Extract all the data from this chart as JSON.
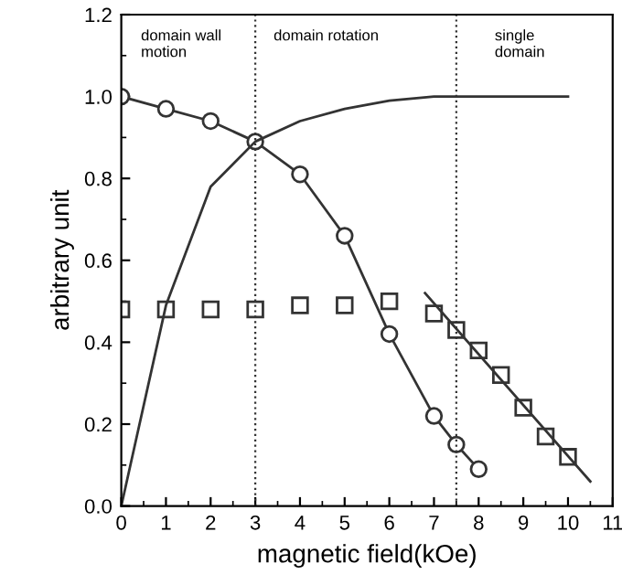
{
  "chart_data": {
    "type": "line",
    "xlabel": "magnetic field(kOe)",
    "ylabel": "arbitrary unit",
    "xlim": [
      0,
      11
    ],
    "ylim": [
      0,
      1.2
    ],
    "xticks": [
      0,
      1,
      2,
      3,
      4,
      5,
      6,
      7,
      8,
      9,
      10,
      11
    ],
    "yticks": [
      {
        "value": 0,
        "label": "0.0"
      },
      0.2,
      0.4,
      0.6,
      0.8,
      {
        "value": 1,
        "label": "1.0"
      },
      1.2
    ],
    "series": [
      {
        "marker": "circle",
        "color": "#333333",
        "x": [
          0,
          1,
          2,
          3,
          4,
          5,
          6,
          7,
          7.5,
          8
        ],
        "values": [
          1.0,
          0.97,
          0.94,
          0.89,
          0.81,
          0.66,
          0.42,
          0.22,
          0.15,
          0.09
        ]
      },
      {
        "type": "scatter",
        "marker": "square",
        "color": "#333333",
        "x": [
          0,
          1,
          2,
          3,
          4,
          5,
          6,
          7,
          7.5,
          8,
          8.5,
          9,
          9.5,
          10
        ],
        "values": [
          0.48,
          0.48,
          0.48,
          0.48,
          0.49,
          0.49,
          0.5,
          0.47,
          0.43,
          0.38,
          0.32,
          0.24,
          0.17,
          0.12
        ]
      },
      {
        "marker": "none",
        "color": "#333333",
        "x": [
          6.8,
          10.5
        ],
        "values": [
          0.52,
          0.06
        ]
      },
      {
        "marker": "none",
        "color": "#333333",
        "x": [
          0,
          1,
          2,
          3,
          4,
          5,
          6,
          7,
          8,
          9,
          10
        ],
        "values": [
          0.0,
          0.49,
          0.78,
          0.89,
          0.94,
          0.97,
          0.99,
          1.0,
          1.0,
          1.0,
          1.0
        ]
      }
    ],
    "ref_lines": [
      {
        "axis": "x",
        "value": 3,
        "line_style": "dotted",
        "color": "#333333"
      },
      {
        "axis": "x",
        "value": 7.5,
        "line_style": "dotted",
        "color": "#333333"
      }
    ],
    "annotations": [
      "domain wall\nmotion",
      "domain rotation",
      "single\ndomain"
    ],
    "grid": false,
    "legend": false
  }
}
